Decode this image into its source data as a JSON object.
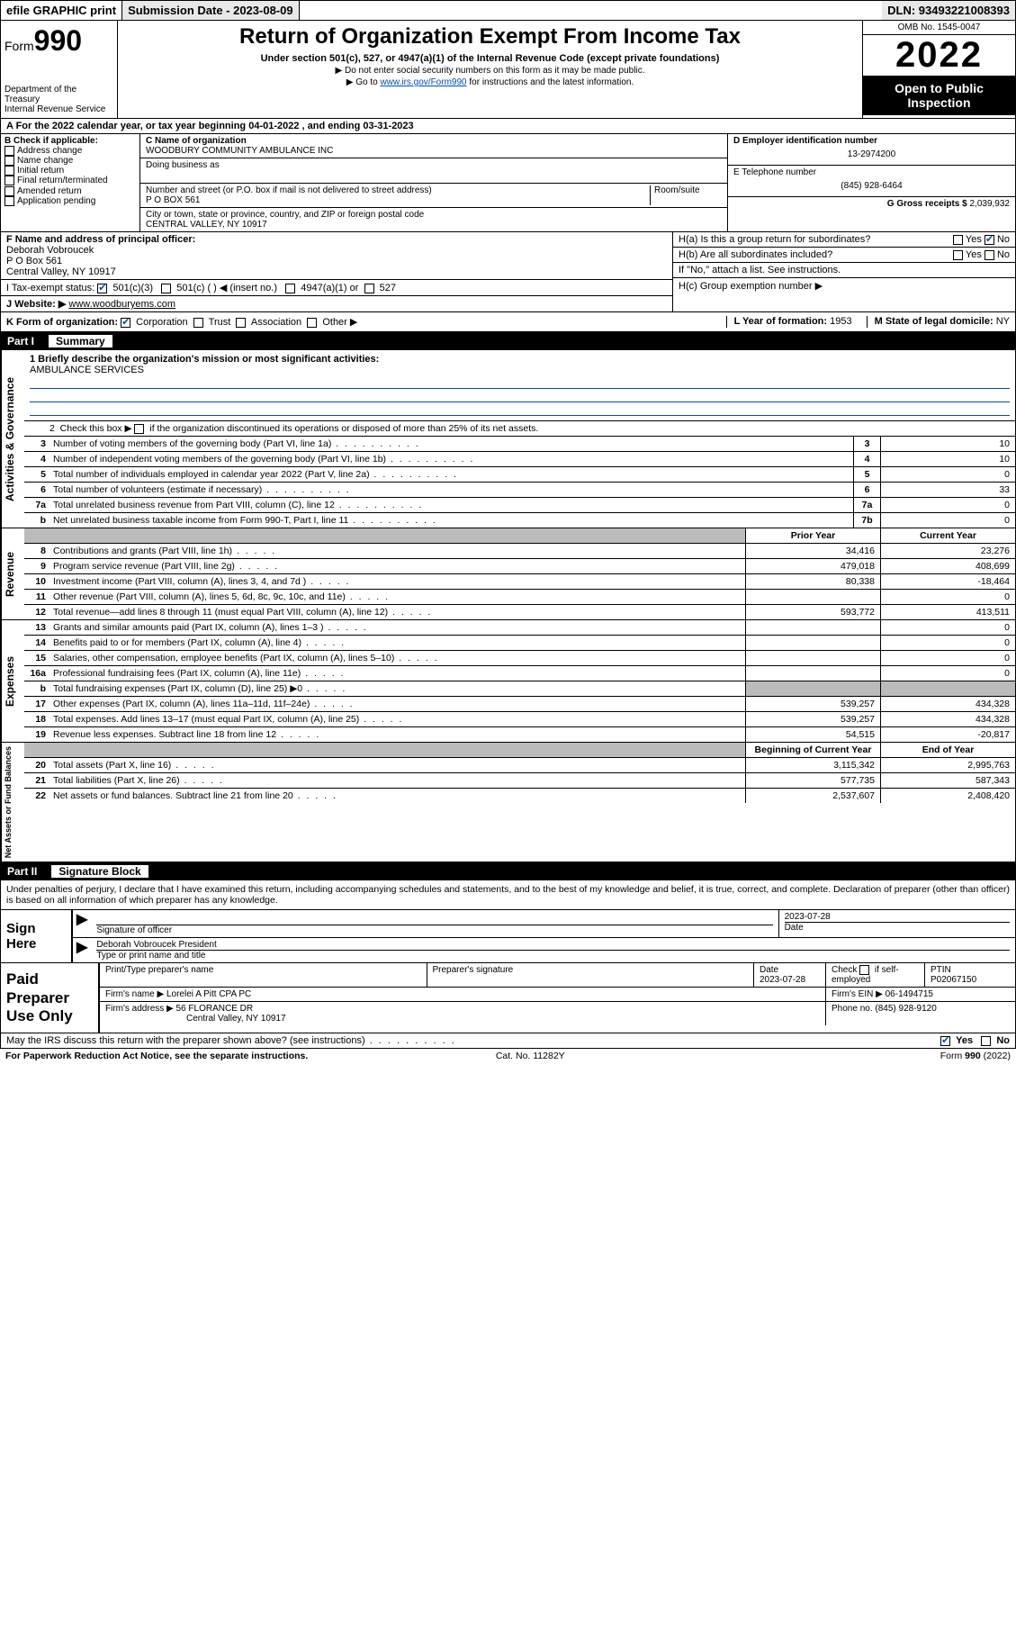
{
  "topbar": {
    "efile": "efile GRAPHIC print",
    "submission_label": "Submission Date - 2023-08-09",
    "dln": "DLN: 93493221008393"
  },
  "header": {
    "form_prefix": "Form",
    "form_no": "990",
    "title": "Return of Organization Exempt From Income Tax",
    "subtitle": "Under section 501(c), 527, or 4947(a)(1) of the Internal Revenue Code (except private foundations)",
    "note1": "▶ Do not enter social security numbers on this form as it may be made public.",
    "note2_pre": "▶ Go to ",
    "note2_link": "www.irs.gov/Form990",
    "note2_post": " for instructions and the latest information.",
    "dept": "Department of the Treasury",
    "irs": "Internal Revenue Service",
    "omb": "OMB No. 1545-0047",
    "year": "2022",
    "open": "Open to Public Inspection"
  },
  "row_a": {
    "text_pre": "A For the 2022 calendar year, or tax year beginning ",
    "begin": "04-01-2022",
    "mid": " , and ending ",
    "end": "03-31-2023"
  },
  "b": {
    "label": "B Check if applicable:",
    "items": [
      "Address change",
      "Name change",
      "Initial return",
      "Final return/terminated",
      "Amended return",
      "Application pending"
    ]
  },
  "c": {
    "name_label": "C Name of organization",
    "name": "WOODBURY COMMUNITY AMBULANCE INC",
    "dba_label": "Doing business as",
    "addr_label": "Number and street (or P.O. box if mail is not delivered to street address)",
    "room_label": "Room/suite",
    "addr": "P O BOX 561",
    "city_label": "City or town, state or province, country, and ZIP or foreign postal code",
    "city": "CENTRAL VALLEY, NY  10917"
  },
  "d": {
    "label": "D Employer identification number",
    "val": "13-2974200"
  },
  "e": {
    "label": "E Telephone number",
    "val": "(845) 928-6464"
  },
  "g": {
    "label": "G Gross receipts $",
    "val": "2,039,932"
  },
  "f": {
    "label": "F Name and address of principal officer:",
    "name": "Deborah Vobroucek",
    "addr1": "P O Box 561",
    "addr2": "Central Valley, NY  10917"
  },
  "h": {
    "a_label": "H(a)  Is this a group return for subordinates?",
    "b_label": "H(b)  Are all subordinates included?",
    "b_note": "If \"No,\" attach a list. See instructions.",
    "c_label": "H(c)  Group exemption number ▶",
    "yes": "Yes",
    "no": "No"
  },
  "i": {
    "label": "I   Tax-exempt status:",
    "o1": "501(c)(3)",
    "o2": "501(c) (  ) ◀ (insert no.)",
    "o3": "4947(a)(1) or",
    "o4": "527"
  },
  "j": {
    "label": "J   Website: ▶",
    "val": "www.woodburyems.com"
  },
  "k": {
    "label": "K Form of organization:",
    "o1": "Corporation",
    "o2": "Trust",
    "o3": "Association",
    "o4": "Other ▶",
    "l_label": "L Year of formation:",
    "l_val": "1953",
    "m_label": "M State of legal domicile:",
    "m_val": "NY"
  },
  "part1": {
    "no": "Part I",
    "title": "Summary"
  },
  "summary": {
    "q1_label": "1   Briefly describe the organization's mission or most significant activities:",
    "q1_val": "AMBULANCE SERVICES",
    "q2": "2   Check this box ▶       if the organization discontinued its operations or disposed of more than 25% of its net assets.",
    "rows_top": [
      {
        "no": "3",
        "desc": "Number of voting members of the governing body (Part VI, line 1a)",
        "box": "3",
        "val": "10"
      },
      {
        "no": "4",
        "desc": "Number of independent voting members of the governing body (Part VI, line 1b)",
        "box": "4",
        "val": "10"
      },
      {
        "no": "5",
        "desc": "Total number of individuals employed in calendar year 2022 (Part V, line 2a)",
        "box": "5",
        "val": "0"
      },
      {
        "no": "6",
        "desc": "Total number of volunteers (estimate if necessary)",
        "box": "6",
        "val": "33"
      },
      {
        "no": "7a",
        "desc": "Total unrelated business revenue from Part VIII, column (C), line 12",
        "box": "7a",
        "val": "0"
      },
      {
        "no": "b",
        "desc": "Net unrelated business taxable income from Form 990-T, Part I, line 11",
        "box": "7b",
        "val": "0"
      }
    ],
    "prior_label": "Prior Year",
    "current_label": "Current Year",
    "revenue": [
      {
        "no": "8",
        "desc": "Contributions and grants (Part VIII, line 1h)",
        "prior": "34,416",
        "curr": "23,276"
      },
      {
        "no": "9",
        "desc": "Program service revenue (Part VIII, line 2g)",
        "prior": "479,018",
        "curr": "408,699"
      },
      {
        "no": "10",
        "desc": "Investment income (Part VIII, column (A), lines 3, 4, and 7d )",
        "prior": "80,338",
        "curr": "-18,464"
      },
      {
        "no": "11",
        "desc": "Other revenue (Part VIII, column (A), lines 5, 6d, 8c, 9c, 10c, and 11e)",
        "prior": "",
        "curr": "0"
      },
      {
        "no": "12",
        "desc": "Total revenue—add lines 8 through 11 (must equal Part VIII, column (A), line 12)",
        "prior": "593,772",
        "curr": "413,511"
      }
    ],
    "expenses": [
      {
        "no": "13",
        "desc": "Grants and similar amounts paid (Part IX, column (A), lines 1–3 )",
        "prior": "",
        "curr": "0"
      },
      {
        "no": "14",
        "desc": "Benefits paid to or for members (Part IX, column (A), line 4)",
        "prior": "",
        "curr": "0"
      },
      {
        "no": "15",
        "desc": "Salaries, other compensation, employee benefits (Part IX, column (A), lines 5–10)",
        "prior": "",
        "curr": "0"
      },
      {
        "no": "16a",
        "desc": "Professional fundraising fees (Part IX, column (A), line 11e)",
        "prior": "",
        "curr": "0"
      },
      {
        "no": "b",
        "desc": "Total fundraising expenses (Part IX, column (D), line 25) ▶0",
        "prior": "grey",
        "curr": "grey"
      },
      {
        "no": "17",
        "desc": "Other expenses (Part IX, column (A), lines 11a–11d, 11f–24e)",
        "prior": "539,257",
        "curr": "434,328"
      },
      {
        "no": "18",
        "desc": "Total expenses. Add lines 13–17 (must equal Part IX, column (A), line 25)",
        "prior": "539,257",
        "curr": "434,328"
      },
      {
        "no": "19",
        "desc": "Revenue less expenses. Subtract line 18 from line 12",
        "prior": "54,515",
        "curr": "-20,817"
      }
    ],
    "beg_label": "Beginning of Current Year",
    "end_label": "End of Year",
    "netassets": [
      {
        "no": "20",
        "desc": "Total assets (Part X, line 16)",
        "prior": "3,115,342",
        "curr": "2,995,763"
      },
      {
        "no": "21",
        "desc": "Total liabilities (Part X, line 26)",
        "prior": "577,735",
        "curr": "587,343"
      },
      {
        "no": "22",
        "desc": "Net assets or fund balances. Subtract line 21 from line 20",
        "prior": "2,537,607",
        "curr": "2,408,420"
      }
    ],
    "side_labels": {
      "ag": "Activities & Governance",
      "rev": "Revenue",
      "exp": "Expenses",
      "na": "Net Assets or Fund Balances"
    }
  },
  "part2": {
    "no": "Part II",
    "title": "Signature Block"
  },
  "sig": {
    "declaration": "Under penalties of perjury, I declare that I have examined this return, including accompanying schedules and statements, and to the best of my knowledge and belief, it is true, correct, and complete. Declaration of preparer (other than officer) is based on all information of which preparer has any knowledge.",
    "sign_here": "Sign Here",
    "sig_officer": "Signature of officer",
    "date_label": "Date",
    "date": "2023-07-28",
    "name_title": "Deborah Vobroucek  President",
    "type_label": "Type or print name and title"
  },
  "paid": {
    "label": "Paid Preparer Use Only",
    "h1": "Print/Type preparer's name",
    "h2": "Preparer's signature",
    "h3": "Date",
    "h3v": "2023-07-28",
    "h4": "Check       if self-employed",
    "h5": "PTIN",
    "h5v": "P02067150",
    "firm_name_l": "Firm's name    ▶",
    "firm_name": "Lorelei A Pitt CPA PC",
    "firm_ein_l": "Firm's EIN ▶",
    "firm_ein": "06-1494715",
    "firm_addr_l": "Firm's address ▶",
    "firm_addr1": "56 FLORANCE DR",
    "firm_addr2": "Central Valley, NY  10917",
    "phone_l": "Phone no.",
    "phone": "(845) 928-9120"
  },
  "discuss": {
    "q": "May the IRS discuss this return with the preparer shown above? (see instructions)",
    "yes": "Yes",
    "no": "No"
  },
  "footer": {
    "left": "For Paperwork Reduction Act Notice, see the separate instructions.",
    "mid": "Cat. No. 11282Y",
    "right_pre": "Form ",
    "right_b": "990",
    "right_post": " (2022)"
  }
}
